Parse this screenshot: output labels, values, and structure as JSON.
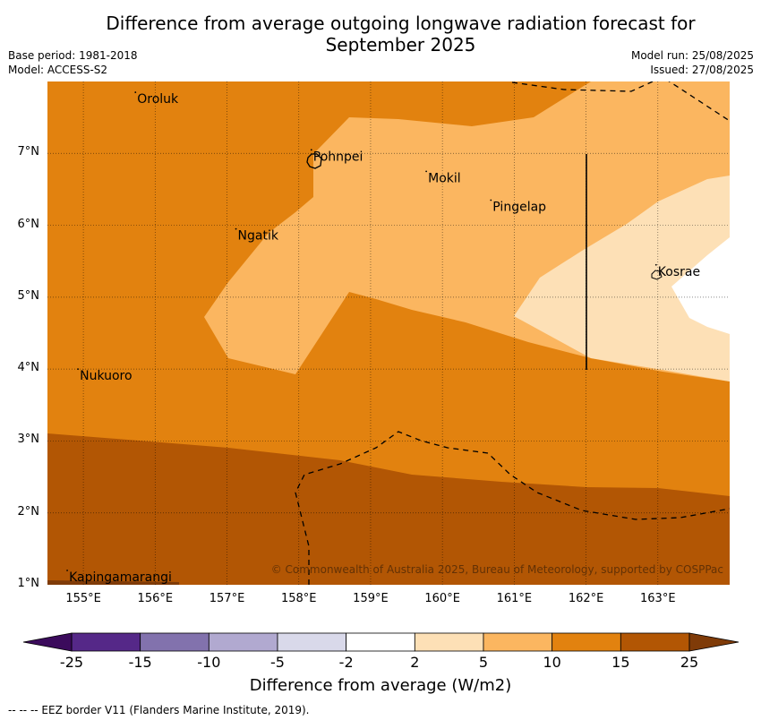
{
  "title": "Difference from average outgoing longwave radiation forecast for\nSeptember 2025",
  "meta_left": {
    "base_period": "Base period: 1981-2018",
    "model": "Model: ACCESS-S2"
  },
  "meta_right": {
    "model_run": "Model run: 25/08/2025",
    "issued": "Issued: 27/08/2025"
  },
  "map": {
    "lon_range": [
      154.5,
      164.0
    ],
    "lat_range": [
      1.0,
      8.0
    ],
    "lat_labels": [
      "7°N",
      "6°N",
      "5°N",
      "4°N",
      "3°N",
      "2°N",
      "1°N"
    ],
    "lon_labels": [
      "155°E",
      "156°E",
      "157°E",
      "158°E",
      "159°E",
      "160°E",
      "161°E",
      "162°E",
      "163°E"
    ],
    "places": [
      {
        "name": "Oroluk",
        "lon": 155.75,
        "lat": 7.7
      },
      {
        "name": "Pohnpei",
        "lon": 158.2,
        "lat": 6.9
      },
      {
        "name": "Mokil",
        "lon": 159.8,
        "lat": 6.6
      },
      {
        "name": "Pingelap",
        "lon": 160.7,
        "lat": 6.2
      },
      {
        "name": "Ngatik",
        "lon": 157.15,
        "lat": 5.8
      },
      {
        "name": "Kosrae",
        "lon": 163.0,
        "lat": 5.3
      },
      {
        "name": "Nukuoro",
        "lon": 154.95,
        "lat": 3.85
      },
      {
        "name": "Kapingamarangi",
        "lon": 154.8,
        "lat": 1.05
      }
    ],
    "copyright": "© Commonwealth of Australia 2025, Bureau of Meteorology, supported by COSPPac"
  },
  "colorbar": {
    "title": "Difference from average (W/m2)",
    "ticks": [
      "-25",
      "-15",
      "-10",
      "-5",
      "-2",
      "2",
      "5",
      "10",
      "15",
      "25"
    ],
    "colors": [
      "#552888",
      "#8272ad",
      "#b1a9d0",
      "#d9d9ea",
      "#ffffff",
      "#fde0b6",
      "#fbb660",
      "#e2820f",
      "#b25604"
    ],
    "under_color": "#3b0b5c",
    "over_color": "#7f3b08"
  },
  "eez_note": "--  --  -- EEZ border V11 (Flanders Marine Institute, 2019)."
}
